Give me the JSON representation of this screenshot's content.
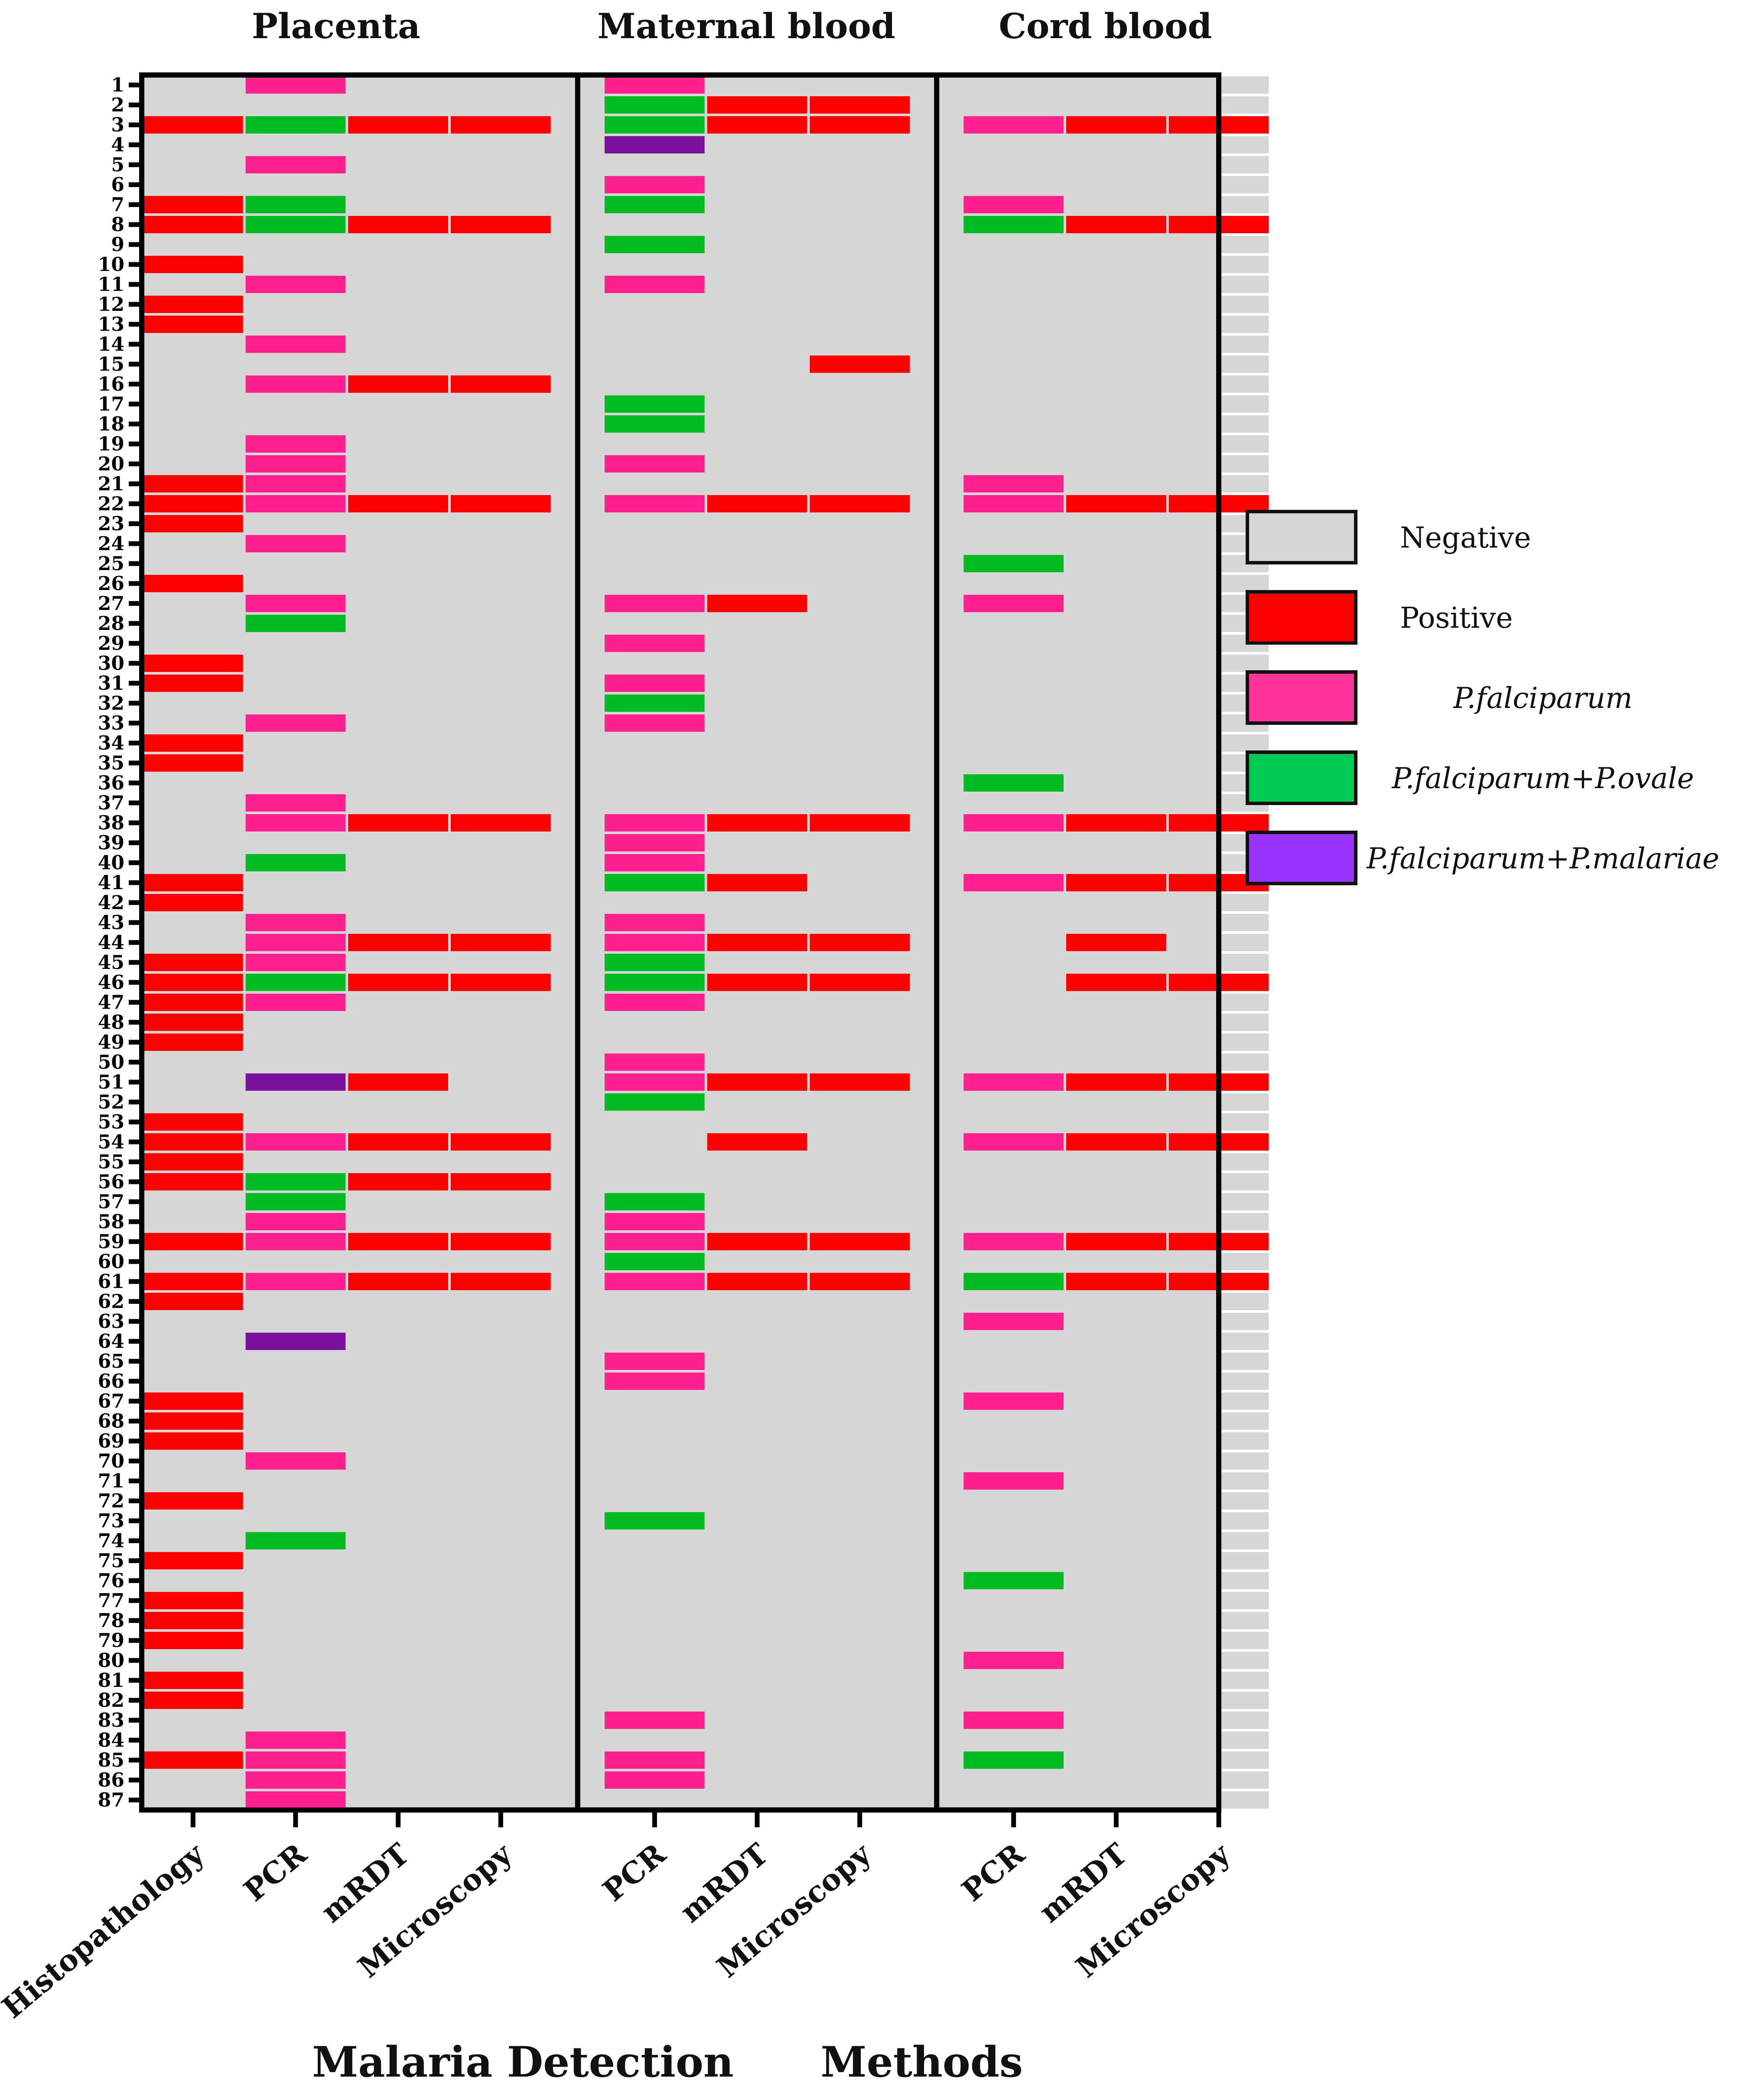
{
  "chart_data": {
    "type": "heatmap",
    "title": "",
    "xlabel": "Malaria Detection      Methods",
    "ylabel": "",
    "groups": [
      {
        "label": "Placenta",
        "methods": [
          "Histopathology",
          "PCR",
          "mRDT",
          "Microscopy"
        ]
      },
      {
        "label": "Maternal blood",
        "methods": [
          "PCR",
          "mRDT",
          "Microscopy"
        ]
      },
      {
        "label": "Cord blood",
        "methods": [
          "PCR",
          "mRDT",
          "Microscopy"
        ]
      }
    ],
    "legend": [
      {
        "code": "N",
        "label": "Negative",
        "color": "#d6d6d6",
        "italic": false
      },
      {
        "code": "P",
        "label": "Positive",
        "color": "#ff0000",
        "italic": false
      },
      {
        "code": "F",
        "label": "P.falciparum",
        "color": "#ff3399",
        "italic": true
      },
      {
        "code": "O",
        "label": "P.falciparum+P.ovale",
        "color": "#00cc55",
        "italic": true
      },
      {
        "code": "M",
        "label": "P.falciparum+P.malariae",
        "color": "#9933ff",
        "italic": true
      }
    ],
    "colors": {
      "N": "#d6d6d6",
      "P": "#ff0000",
      "F": "#ff1f8f",
      "O": "#00bb22",
      "M": "#7a109c"
    },
    "row_labels": [
      "1",
      "2",
      "3",
      "4",
      "5",
      "6",
      "7",
      "8",
      "9",
      "10",
      "11",
      "12",
      "13",
      "14",
      "15",
      "16",
      "17",
      "18",
      "19",
      "20",
      "21",
      "22",
      "23",
      "24",
      "25",
      "26",
      "27",
      "28",
      "29",
      "30",
      "31",
      "32",
      "33",
      "34",
      "35",
      "36",
      "37",
      "38",
      "39",
      "40",
      "41",
      "42",
      "43",
      "44",
      "45",
      "46",
      "47",
      "48",
      "49",
      "50",
      "51",
      "52",
      "53",
      "54",
      "55",
      "56",
      "57",
      "58",
      "59",
      "60",
      "61",
      "62",
      "63",
      "64",
      "65",
      "66",
      "67",
      "68",
      "69",
      "70",
      "71",
      "72",
      "73",
      "74",
      "75",
      "76",
      "77",
      "78",
      "79",
      "80",
      "81",
      "82",
      "83",
      "84",
      "85",
      "86",
      "87"
    ],
    "rows": [
      "NFNNFNNNNN",
      "NNNNOPPNNN",
      "POPPOPPFPP",
      "NNNNMNNNNN",
      "NFNNNNNNNN",
      "NNNNFNNNNN",
      "PONNONNFNN",
      "POPPNNNOPP",
      "NNNNONNNNN",
      "PNNNNNNNNN",
      "NFNNFNNNNN",
      "PNNNNNNNNN",
      "PNNNNNNNNN",
      "NFNNNNNNNN",
      "NNNNNNPNNN",
      "NFPPNNNNNN",
      "NNNNONNNNN",
      "NNNNONNNNN",
      "NFNNNNNNNN",
      "NFNNFNNNNN",
      "PFNNNNNFNN",
      "PFPPFPPFPP",
      "PNNNNNNNNN",
      "NFNNNNNNNN",
      "NNNNNNNONN",
      "PNNNNNNNNN",
      "NFNNFPNFNN",
      "NONNNNNNNN",
      "NNNNFNNNNN",
      "PNNNNNNNNN",
      "PNNNFNNNNN",
      "NNNNONNNNN",
      "NFNNFNNNNN",
      "PNNNNNNNNN",
      "PNNNNNNNNN",
      "NNNNNNNONN",
      "NFNNNNNNNN",
      "NFPPFPPFPP",
      "NNNNFNNNNN",
      "NONNFNNNNN",
      "PNNNOPNFPP",
      "PNNNNNNNNN",
      "NFNNFNNNNN",
      "NFPPFPPNPN",
      "PFNNONNNNN",
      "POPPOPPNPP",
      "PFNNFNNNNN",
      "PNNNNNNNNN",
      "PNNNNNNNNN",
      "NNNNFNNNNN",
      "NMPNFPPFPP",
      "NNNNONNNNN",
      "PNNNNNNNNN",
      "PFPPNPNFPP",
      "PNNNNNNNNN",
      "POPPNNNNNN",
      "NONNONNNNN",
      "NFNNFNNNNN",
      "PFPPFPPFPP",
      "NNNNONNNNN",
      "PFPPFPPOPP",
      "PNNNNNNNNN",
      "NNNNNNNFNN",
      "NMNNNNNNNN",
      "NNNNFNNNNN",
      "NNNNFNNNNN",
      "PNNNNNNFNN",
      "PNNNNNNNNN",
      "PNNNNNNNNN",
      "NFNNNNNNNN",
      "NNNNNNNFNN",
      "PNNNNNNNNN",
      "NNNNONNNNN",
      "NONNNNNNNN",
      "PNNNNNNNNN",
      "NNNNNNNONN",
      "PNNNNNNNNN",
      "PNNNNNNNNN",
      "PNNNNNNNNN",
      "NNNNNNNFNN",
      "PNNNNNNNNN",
      "PNNNNNNNNN",
      "NNNNFNNFNN",
      "NFNNNNNNNN",
      "PFNNFNNONN",
      "NFNNFNNNNN",
      "NFNNNNNNNN"
    ]
  }
}
